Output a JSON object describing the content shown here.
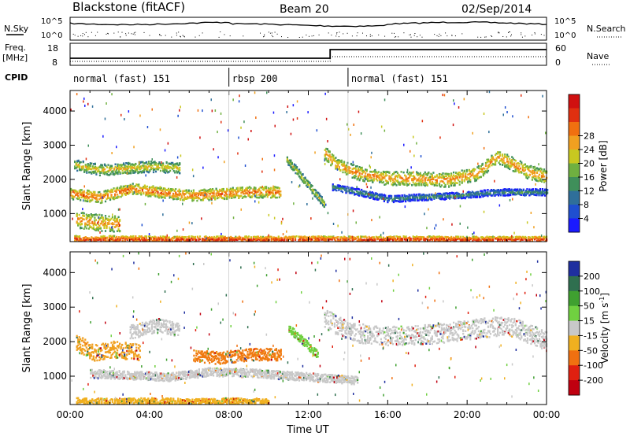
{
  "header": {
    "title": "Blackstone (fitACF)",
    "beam": "Beam 20",
    "date": "02/Sep/2014"
  },
  "top_panels": {
    "nsky_label": "N.Sky",
    "nsearch_label": "N.Search",
    "log_top": "10^5",
    "log_bottom": "10^0",
    "freq_label": "Freq.",
    "freq_unit": "[MHz]",
    "freq_ticks": [
      "18",
      "8"
    ],
    "nave_label": "Nave",
    "nave_ticks": [
      "60",
      "0"
    ],
    "cpid_label": "CPID",
    "cpid_segments": [
      {
        "label": "normal (fast) 151",
        "start_h": 0,
        "end_h": 8
      },
      {
        "label": "rbsp 200",
        "start_h": 8,
        "end_h": 14
      },
      {
        "label": "normal (fast) 151",
        "start_h": 14,
        "end_h": 24
      }
    ],
    "freq_step_hour": 13.1
  },
  "chart_data": [
    {
      "type": "heatmap",
      "name": "power",
      "ylabel": "Slant Range [km]",
      "yticks": [
        1000,
        2000,
        3000,
        4000
      ],
      "ylim": [
        180,
        4600
      ],
      "xlim": [
        0,
        24
      ],
      "colorbar": {
        "label": "Power [dB]",
        "ticks": [
          "4",
          "8",
          "12",
          "16",
          "20",
          "24",
          "28"
        ],
        "colors": [
          "#1a1aff",
          "#1f4fd0",
          "#2f6f9a",
          "#3f8f5a",
          "#6fb040",
          "#c8c820",
          "#f0a020",
          "#f07010",
          "#e03010",
          "#d01010"
        ]
      },
      "bands": [
        {
          "x": [
            0,
            1.5,
            3,
            4.5,
            6,
            7.5,
            9,
            10.6
          ],
          "y": [
            1600,
            1500,
            1750,
            1650,
            1550,
            1600,
            1650,
            1650
          ],
          "w": 200,
          "level": 0.6
        },
        {
          "x": [
            0.2,
            1.5,
            2.8,
            4.2,
            5.5
          ],
          "y": [
            2450,
            2300,
            2350,
            2400,
            2350
          ],
          "w": 200,
          "level": 0.45
        },
        {
          "x": [
            10.9,
            11.5,
            12.2,
            12.8
          ],
          "y": [
            2600,
            2200,
            1700,
            1300
          ],
          "w": 150,
          "level": 0.4
        },
        {
          "x": [
            12.8,
            13.4,
            14.5,
            16,
            17.5,
            19,
            20.5,
            21.5,
            23,
            24
          ],
          "y": [
            2800,
            2450,
            2200,
            2050,
            2050,
            2000,
            2200,
            2700,
            2250,
            2100
          ],
          "w": 250,
          "level": 0.55
        },
        {
          "x": [
            13.2,
            14.5,
            16,
            17.5,
            19.5,
            21.5,
            24
          ],
          "y": [
            1800,
            1650,
            1450,
            1500,
            1550,
            1650,
            1650
          ],
          "w": 120,
          "level": 0.2
        },
        {
          "x": [
            0.2,
            1,
            2,
            3.5,
            5,
            7,
            9.5,
            12,
            14.5,
            17,
            20,
            24
          ],
          "y": [
            280,
            260,
            280,
            270,
            260,
            270,
            260,
            270,
            260,
            270,
            260,
            260
          ],
          "w": 120,
          "level": 0.7
        },
        {
          "x": [
            0.3,
            1.5,
            2.5
          ],
          "y": [
            850,
            750,
            700
          ],
          "w": 300,
          "level": 0.55
        }
      ]
    },
    {
      "type": "heatmap",
      "name": "velocity",
      "ylabel": "Slant Range [km]",
      "xlabel": "Time UT",
      "yticks": [
        1000,
        2000,
        3000,
        4000
      ],
      "ylim": [
        180,
        4600
      ],
      "xlim": [
        0,
        24
      ],
      "xticks": [
        "00:00",
        "04:00",
        "08:00",
        "12:00",
        "16:00",
        "20:00",
        "00:00"
      ],
      "colorbar": {
        "label": "Velocity [m s",
        "label_sup": "-1",
        "label_end": "]",
        "ticks": [
          "200",
          "100",
          "50",
          "15",
          "-15",
          "-50",
          "-100",
          "-200"
        ],
        "colors": [
          "#1f2f9f",
          "#2f6f4f",
          "#3fa030",
          "#70d040",
          "#c8c8c8",
          "#f0b020",
          "#f07010",
          "#e02010",
          "#c00010"
        ]
      },
      "bands": [
        {
          "x": [
            0.3,
            1.2,
            2.2,
            3.5
          ],
          "y": [
            2000,
            1700,
            1800,
            1700
          ],
          "w": 300,
          "color": "#f0a020"
        },
        {
          "x": [
            6.2,
            7.5,
            9,
            10.6
          ],
          "y": [
            1600,
            1550,
            1650,
            1650
          ],
          "w": 220,
          "color": "#f07a10"
        },
        {
          "x": [
            3,
            4.5,
            5.5
          ],
          "y": [
            2300,
            2500,
            2350
          ],
          "w": 250,
          "color": "#c8c8c8"
        },
        {
          "x": [
            12.8,
            14,
            15.5,
            17,
            18.5,
            20.5,
            22,
            24
          ],
          "y": [
            2700,
            2300,
            2200,
            2200,
            2250,
            2400,
            2500,
            2050
          ],
          "w": 350,
          "color": "#c8c8c8"
        },
        {
          "x": [
            1,
            3,
            5,
            7,
            9.5,
            12,
            14.5
          ],
          "y": [
            1100,
            1050,
            1000,
            1150,
            1100,
            1000,
            900
          ],
          "w": 150,
          "color": "#c8c8c8"
        },
        {
          "x": [
            0.3,
            2,
            4,
            6,
            8,
            10
          ],
          "y": [
            300,
            280,
            300,
            280,
            300,
            280
          ],
          "w": 120,
          "color": "#f0b020"
        },
        {
          "x": [
            11,
            11.8,
            12.5
          ],
          "y": [
            2400,
            2000,
            1600
          ],
          "w": 150,
          "color": "#70d040"
        }
      ]
    }
  ]
}
